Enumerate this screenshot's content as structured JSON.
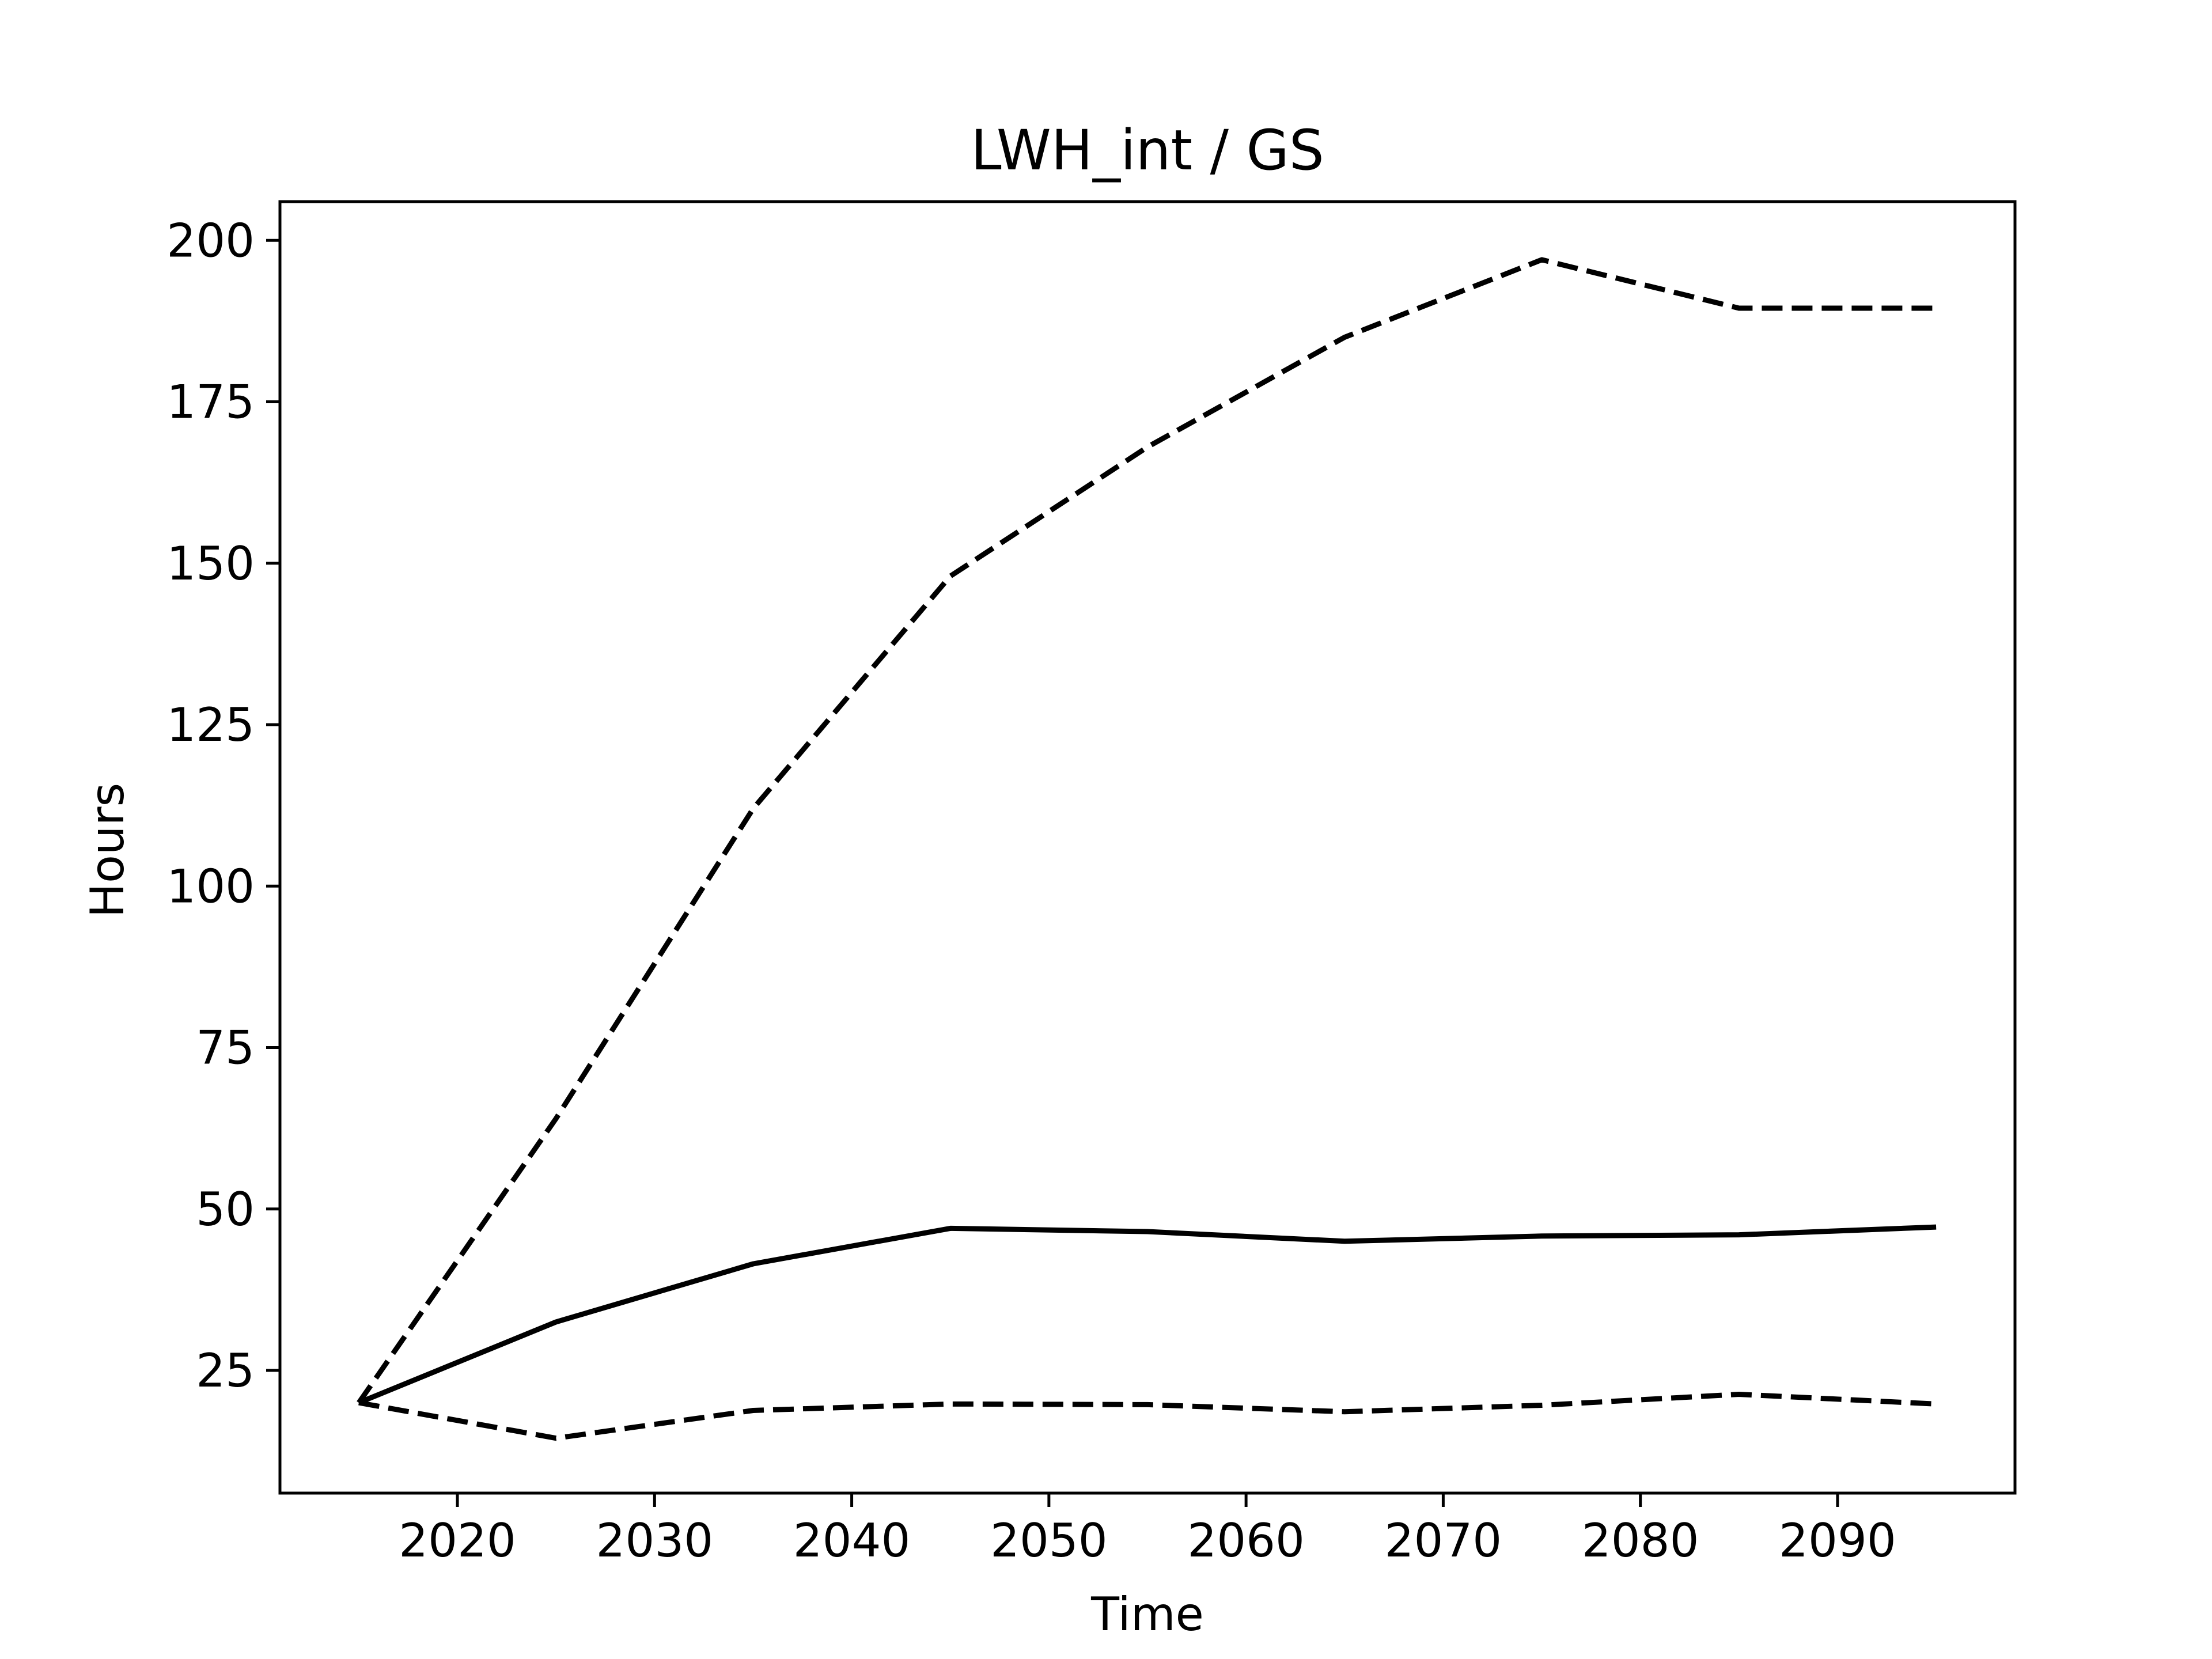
{
  "chart_data": {
    "type": "line",
    "title": "LWH_int / GS",
    "xlabel": "Time",
    "ylabel": "Hours",
    "xlim": [
      2011,
      2099
    ],
    "ylim": [
      6,
      206
    ],
    "xticks": [
      2020,
      2030,
      2040,
      2050,
      2060,
      2070,
      2080,
      2090
    ],
    "yticks": [
      25,
      50,
      75,
      100,
      125,
      150,
      175,
      200
    ],
    "grid": false,
    "x": [
      2015,
      2025,
      2035,
      2045,
      2055,
      2065,
      2075,
      2085,
      2095
    ],
    "series": [
      {
        "style": "dashed",
        "color": "#000000",
        "values": [
          20,
          64,
          112,
          148,
          168,
          185,
          197,
          189.5,
          189.5
        ]
      },
      {
        "style": "solid",
        "color": "#000000",
        "values": [
          20,
          32.5,
          41.5,
          47,
          46.5,
          45,
          45.8,
          46,
          47.2
        ]
      },
      {
        "style": "dashed",
        "color": "#000000",
        "values": [
          20,
          14.5,
          18.8,
          19.8,
          19.7,
          18.6,
          19.6,
          21.3,
          19.8
        ]
      }
    ]
  }
}
